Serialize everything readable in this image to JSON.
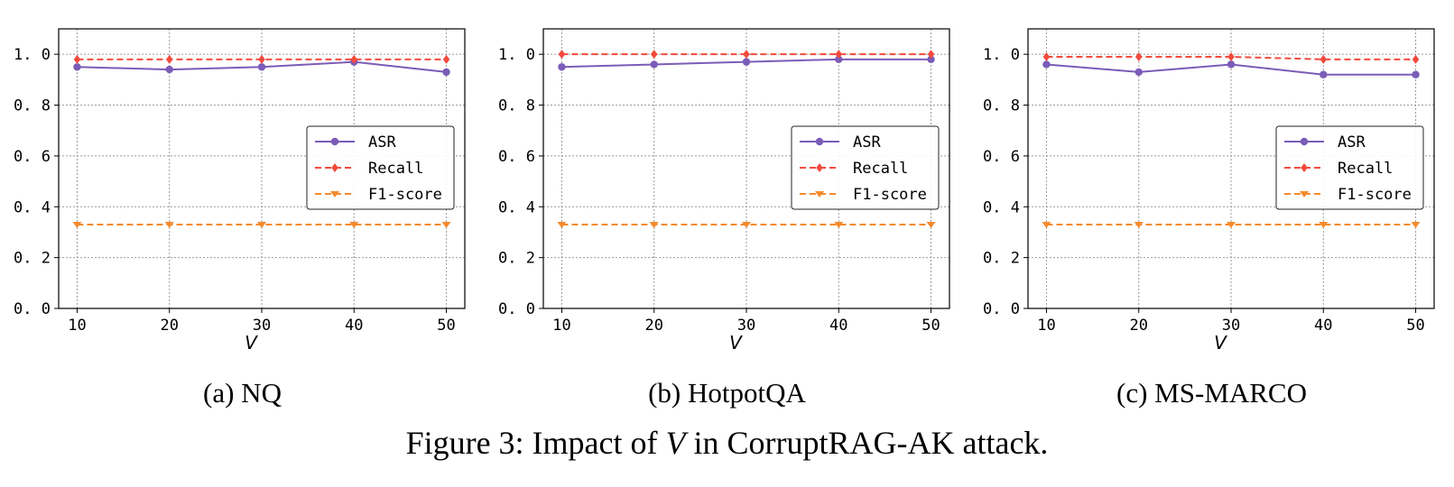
{
  "figure": {
    "caption_prefix": "Figure 3: Impact of ",
    "caption_var": "V",
    "caption_suffix": " in CorruptRAG-AK attack."
  },
  "colors": {
    "ASR": "#7b5cb8",
    "Recall": "#f24a3d",
    "F1-score": "#f58a2e",
    "grid": "#9a9a9a",
    "axis": "#000000"
  },
  "chart_data": [
    {
      "type": "line",
      "subcaption": "(a) NQ",
      "x": [
        10,
        20,
        30,
        40,
        50
      ],
      "xticks": [
        "10",
        "20",
        "30",
        "40",
        "50"
      ],
      "xlabel": "V",
      "ylabel": "",
      "ylim": [
        0,
        1.1
      ],
      "yticks": [
        "0.0",
        "0.2",
        "0.4",
        "0.6",
        "0.8",
        "1.0"
      ],
      "grid": true,
      "legend_position": "center-right",
      "series": [
        {
          "name": "ASR",
          "marker": "circle",
          "dash": "solid",
          "values": [
            0.95,
            0.94,
            0.95,
            0.97,
            0.93
          ]
        },
        {
          "name": "Recall",
          "marker": "diamond",
          "dash": "dashed",
          "values": [
            0.98,
            0.98,
            0.98,
            0.98,
            0.98
          ]
        },
        {
          "name": "F1-score",
          "marker": "triangle-down",
          "dash": "dashed",
          "values": [
            0.33,
            0.33,
            0.33,
            0.33,
            0.33
          ]
        }
      ]
    },
    {
      "type": "line",
      "subcaption": "(b) HotpotQA",
      "x": [
        10,
        20,
        30,
        40,
        50
      ],
      "xticks": [
        "10",
        "20",
        "30",
        "40",
        "50"
      ],
      "xlabel": "V",
      "ylabel": "",
      "ylim": [
        0,
        1.1
      ],
      "yticks": [
        "0.0",
        "0.2",
        "0.4",
        "0.6",
        "0.8",
        "1.0"
      ],
      "grid": true,
      "legend_position": "center-right",
      "series": [
        {
          "name": "ASR",
          "marker": "circle",
          "dash": "solid",
          "values": [
            0.95,
            0.96,
            0.97,
            0.98,
            0.98
          ]
        },
        {
          "name": "Recall",
          "marker": "diamond",
          "dash": "dashed",
          "values": [
            1.0,
            1.0,
            1.0,
            1.0,
            1.0
          ]
        },
        {
          "name": "F1-score",
          "marker": "triangle-down",
          "dash": "dashed",
          "values": [
            0.33,
            0.33,
            0.33,
            0.33,
            0.33
          ]
        }
      ]
    },
    {
      "type": "line",
      "subcaption": "(c) MS-MARCO",
      "x": [
        10,
        20,
        30,
        40,
        50
      ],
      "xticks": [
        "10",
        "20",
        "30",
        "40",
        "50"
      ],
      "xlabel": "V",
      "ylabel": "",
      "ylim": [
        0,
        1.1
      ],
      "yticks": [
        "0.0",
        "0.2",
        "0.4",
        "0.6",
        "0.8",
        "1.0"
      ],
      "grid": true,
      "legend_position": "center-right",
      "series": [
        {
          "name": "ASR",
          "marker": "circle",
          "dash": "solid",
          "values": [
            0.96,
            0.93,
            0.96,
            0.92,
            0.92
          ]
        },
        {
          "name": "Recall",
          "marker": "diamond",
          "dash": "dashed",
          "values": [
            0.99,
            0.99,
            0.99,
            0.98,
            0.98
          ]
        },
        {
          "name": "F1-score",
          "marker": "triangle-down",
          "dash": "dashed",
          "values": [
            0.33,
            0.33,
            0.33,
            0.33,
            0.33
          ]
        }
      ]
    }
  ]
}
